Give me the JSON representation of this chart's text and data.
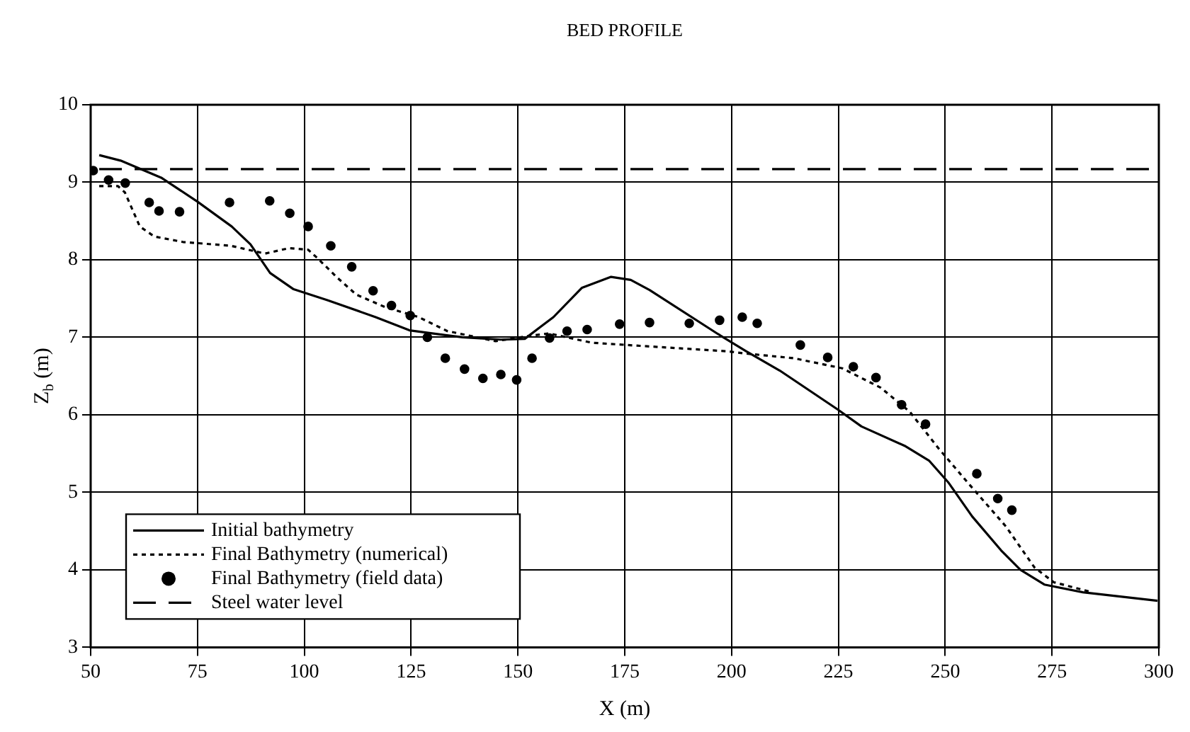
{
  "chart_data": {
    "type": "line",
    "title": "BED PROFILE",
    "xlabel": "X (m)",
    "ylabel": "Z$_{b}$ (m)",
    "xlim": [
      50,
      300
    ],
    "ylim": [
      3,
      10
    ],
    "xticks": [
      50,
      75,
      100,
      125,
      150,
      175,
      200,
      225,
      250,
      275,
      300
    ],
    "yticks": [
      3,
      4,
      5,
      6,
      7,
      8,
      9,
      10
    ],
    "grid": true,
    "legend": "bottom left",
    "series": [
      {
        "name": "Initial bathymetry",
        "type": "line",
        "color": "#000000",
        "line_style": "solid",
        "marker": "none",
        "x": [
          52,
          57,
          66.5,
          75,
          83,
          87.4,
          92,
          97.5,
          105.4,
          116.7,
          124.6,
          132.7,
          137,
          146,
          151.6,
          158.3,
          165,
          171.8,
          176.4,
          180.8,
          196.6,
          203.4,
          211.3,
          224.8,
          230.4,
          240.5,
          246.2,
          250.7,
          256.3,
          263.1,
          267.6,
          273.2,
          282.2,
          299.7
        ],
        "values": [
          9.35,
          9.28,
          9.06,
          8.75,
          8.43,
          8.2,
          7.83,
          7.62,
          7.48,
          7.26,
          7.09,
          7.03,
          7.0,
          6.97,
          6.98,
          7.26,
          7.64,
          7.78,
          7.74,
          7.61,
          7.05,
          6.82,
          6.57,
          6.07,
          5.85,
          5.6,
          5.41,
          5.13,
          4.69,
          4.25,
          4.0,
          3.81,
          3.71,
          3.6
        ]
      },
      {
        "name": "Final Bathymetry (numerical)",
        "type": "line",
        "color": "#000000",
        "line_style": "dotted",
        "marker": "none",
        "x": [
          52,
          56.4,
          58,
          61.5,
          64.9,
          71.6,
          82.9,
          90.8,
          96.4,
          100.9,
          103.1,
          107.7,
          112.2,
          118.9,
          126.8,
          133.5,
          144.8,
          151.6,
          157.2,
          167.3,
          178.6,
          198.9,
          203.4,
          214.6,
          225.9,
          234.9,
          241.7,
          248.4,
          255.2,
          264.2,
          270.9,
          275.4,
          284.5
        ],
        "values": [
          8.95,
          8.95,
          8.87,
          8.43,
          8.3,
          8.23,
          8.18,
          8.08,
          8.15,
          8.13,
          8.02,
          7.77,
          7.55,
          7.39,
          7.26,
          7.08,
          6.95,
          7.01,
          7.05,
          6.93,
          6.89,
          6.82,
          6.79,
          6.73,
          6.6,
          6.35,
          6.04,
          5.57,
          5.13,
          4.56,
          4.03,
          3.84,
          3.71
        ]
      },
      {
        "name": "Final Bathymetry (field data)",
        "type": "scatter",
        "color": "#000000",
        "marker": "circle",
        "x": [
          50.6,
          54.2,
          58.1,
          63.7,
          66,
          70.8,
          82.5,
          91.9,
          96.6,
          100.9,
          106.2,
          111.1,
          116.1,
          120.4,
          124.8,
          128.8,
          133,
          137.5,
          141.8,
          146,
          149.7,
          153.3,
          157.4,
          161.5,
          166.2,
          173.8,
          180.8,
          190.1,
          197.2,
          202.5,
          206,
          216.1,
          222.5,
          228.5,
          233.8,
          239.8,
          245.4,
          257.4,
          262.3,
          265.6
        ],
        "values": [
          9.15,
          9.03,
          8.99,
          8.74,
          8.63,
          8.62,
          8.74,
          8.76,
          8.6,
          8.43,
          8.18,
          7.91,
          7.6,
          7.41,
          7.28,
          7.0,
          6.73,
          6.59,
          6.47,
          6.52,
          6.45,
          6.73,
          6.99,
          7.08,
          7.1,
          7.17,
          7.19,
          7.18,
          7.22,
          7.26,
          7.18,
          6.9,
          6.74,
          6.62,
          6.48,
          6.13,
          5.88,
          5.24,
          4.92,
          4.77
        ]
      },
      {
        "name": "Steel water level",
        "type": "line",
        "color": "#000000",
        "line_style": "dashed",
        "marker": "none",
        "x": [
          52,
          300
        ],
        "values": [
          9.17,
          9.17
        ]
      }
    ]
  }
}
